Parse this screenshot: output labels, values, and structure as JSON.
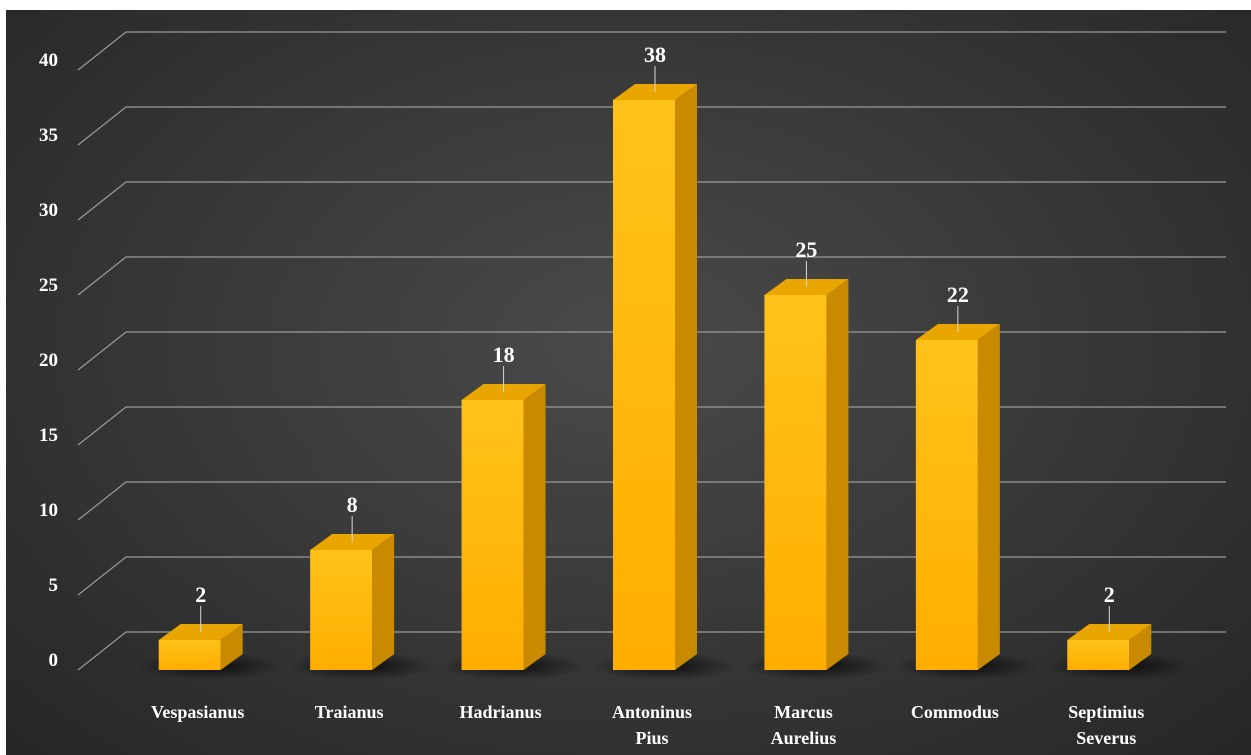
{
  "chart_data": {
    "type": "bar",
    "categories": [
      [
        "Vespasianus"
      ],
      [
        "Traianus"
      ],
      [
        "Hadrianus"
      ],
      [
        "Antoninus",
        "Pius"
      ],
      [
        "Marcus",
        "Aurelius"
      ],
      [
        "Commodus"
      ],
      [
        "Septimius",
        "Severus"
      ]
    ],
    "values": [
      2,
      8,
      18,
      38,
      25,
      22,
      2
    ],
    "data_labels": [
      "2",
      "8",
      "18",
      "38",
      "25",
      "22",
      "2"
    ],
    "y_ticks": [
      "0",
      "5",
      "10",
      "15",
      "20",
      "25",
      "30",
      "35",
      "40"
    ],
    "ylim": [
      0,
      40
    ],
    "title": "",
    "xlabel": "",
    "ylabel": "",
    "grid": true,
    "style": "3d-column",
    "colors": {
      "bar_front_top": "#ffc21a",
      "bar_front_bottom": "#ffb000",
      "bar_side": "#c98a00",
      "bar_top": "#e9a500",
      "gridline": "#9a9a9a",
      "leader_line": "#d8d8d8",
      "text": "#ffffff"
    }
  }
}
